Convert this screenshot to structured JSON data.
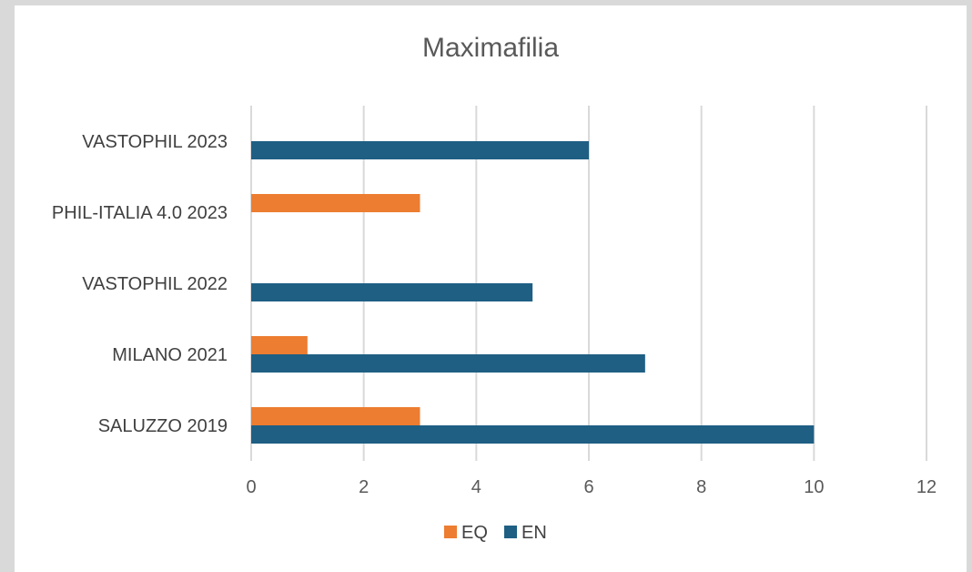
{
  "chart_data": {
    "type": "bar",
    "orientation": "horizontal",
    "title": "Maximafilia",
    "xlabel": "",
    "ylabel": "",
    "categories": [
      "VASTOPHIL 2023",
      "PHIL-ITALIA 4.0 2023",
      "VASTOPHIL 2022",
      "MILANO 2021",
      "SALUZZO 2019"
    ],
    "series": [
      {
        "name": "EQ",
        "color": "#ED7D31",
        "values": [
          0,
          3,
          0,
          1,
          3
        ]
      },
      {
        "name": "EN",
        "color": "#1F5F84",
        "values": [
          6,
          0,
          5,
          7,
          10
        ]
      }
    ],
    "xlim": [
      0,
      12
    ],
    "xticks": [
      0,
      2,
      4,
      6,
      8,
      10,
      12
    ],
    "grid": true,
    "legend_position": "bottom"
  }
}
